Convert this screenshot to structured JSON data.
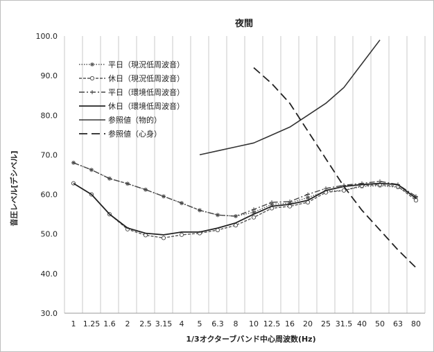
{
  "chart_data": {
    "type": "line",
    "title": "夜間",
    "xlabel": "1/3オクターブバンド中心周波数(Hz)",
    "ylabel": "音圧レベル[デシベル]",
    "ylim": [
      30,
      100
    ],
    "yticks": [
      "30.0",
      "40.0",
      "50.0",
      "60.0",
      "70.0",
      "80.0",
      "90.0",
      "100.0"
    ],
    "categories": [
      "1",
      "1.25",
      "1.6",
      "2",
      "2.5",
      "3.15",
      "4",
      "5",
      "6.3",
      "8",
      "10",
      "12.5",
      "16",
      "20",
      "25",
      "31.5",
      "40",
      "50",
      "63",
      "80"
    ],
    "grid": "vertical",
    "legend_position": "top-left",
    "series": [
      {
        "name": "平日（現況低周波音）",
        "color": "#555555",
        "style": "dotted-star",
        "values": [
          68.0,
          66.2,
          64.0,
          62.7,
          61.2,
          59.5,
          57.8,
          56.0,
          54.8,
          54.5,
          55.5,
          57.5,
          57.8,
          59.2,
          60.8,
          61.0,
          62.0,
          62.2,
          61.8,
          59.2
        ]
      },
      {
        "name": "休日（現況低周波音）",
        "color": "#555555",
        "style": "dashed-circle",
        "values": [
          62.8,
          60.0,
          55.0,
          51.2,
          49.7,
          49.0,
          49.8,
          50.2,
          51.0,
          52.2,
          54.2,
          56.5,
          57.0,
          58.0,
          60.5,
          61.0,
          62.2,
          62.5,
          62.0,
          58.5
        ]
      },
      {
        "name": "平日（環境低周波音）",
        "color": "#444444",
        "style": "dashdot-plus",
        "values": [
          68.0,
          66.2,
          64.0,
          62.7,
          61.2,
          59.5,
          57.8,
          56.0,
          54.8,
          54.5,
          56.2,
          58.0,
          58.2,
          60.0,
          61.5,
          62.3,
          62.8,
          63.3,
          62.5,
          59.5
        ]
      },
      {
        "name": "休日（環境低周波音）",
        "color": "#222222",
        "style": "solid",
        "values": [
          62.8,
          60.0,
          55.0,
          51.5,
          50.2,
          49.8,
          50.5,
          50.5,
          51.5,
          52.8,
          55.0,
          57.0,
          57.5,
          58.5,
          61.0,
          62.0,
          62.5,
          62.8,
          62.5,
          59.0
        ]
      },
      {
        "name": "参照値（物的）",
        "color": "#333333",
        "style": "solid-thin",
        "values": [
          null,
          null,
          null,
          null,
          null,
          null,
          null,
          70.0,
          71.0,
          72.0,
          73.0,
          75.0,
          77.0,
          80.0,
          83.0,
          87.0,
          93.0,
          99.0,
          null,
          null
        ]
      },
      {
        "name": "参照値（心身）",
        "color": "#222222",
        "style": "long-dash",
        "values": [
          null,
          null,
          null,
          null,
          null,
          null,
          null,
          null,
          null,
          null,
          92.0,
          88.0,
          83.0,
          76.0,
          69.0,
          62.0,
          56.0,
          51.0,
          46.0,
          41.5
        ]
      }
    ]
  }
}
